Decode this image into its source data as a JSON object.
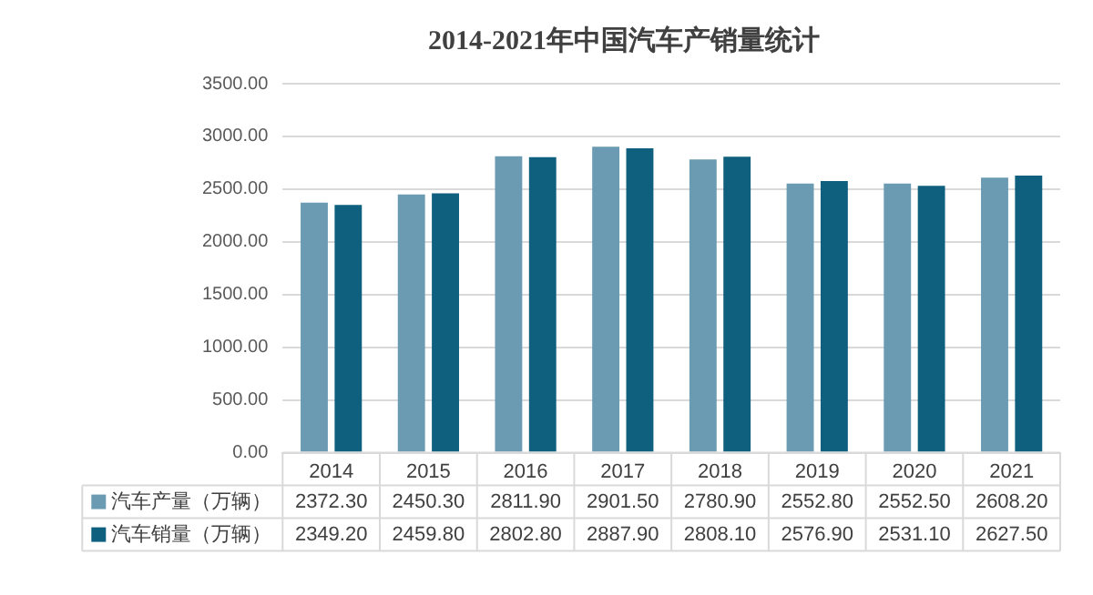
{
  "chart_data": {
    "type": "bar",
    "title": "2014-2021年中国汽车产销量统计",
    "categories": [
      "2014",
      "2015",
      "2016",
      "2017",
      "2018",
      "2019",
      "2020",
      "2021"
    ],
    "series": [
      {
        "name": "汽车产量（万辆）",
        "color": "#6a9bb3",
        "values": [
          2372.3,
          2450.3,
          2811.9,
          2901.5,
          2780.9,
          2552.8,
          2552.5,
          2608.2
        ],
        "value_labels": [
          "2372.30",
          "2450.30",
          "2811.90",
          "2901.50",
          "2780.90",
          "2552.80",
          "2552.50",
          "2608.20"
        ]
      },
      {
        "name": "汽车销量（万辆）",
        "color": "#0f5f7f",
        "values": [
          2349.2,
          2459.8,
          2802.8,
          2887.9,
          2808.1,
          2576.9,
          2531.1,
          2627.5
        ],
        "value_labels": [
          "2349.20",
          "2459.80",
          "2802.80",
          "2887.90",
          "2808.10",
          "2576.90",
          "2531.10",
          "2627.50"
        ]
      }
    ],
    "ylim": [
      0,
      3500
    ],
    "yticks": [
      {
        "value": 0,
        "label": "0.00"
      },
      {
        "value": 500,
        "label": "500.00"
      },
      {
        "value": 1000,
        "label": "1000.00"
      },
      {
        "value": 1500,
        "label": "1500.00"
      },
      {
        "value": 2000,
        "label": "2000.00"
      },
      {
        "value": 2500,
        "label": "2500.00"
      },
      {
        "value": 3000,
        "label": "3000.00"
      },
      {
        "value": 3500,
        "label": "3500.00"
      }
    ],
    "grid": "y",
    "legend": "bottom"
  }
}
